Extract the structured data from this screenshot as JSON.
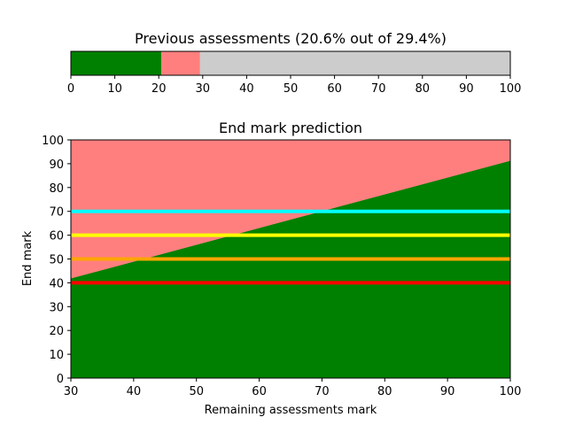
{
  "chart_data": [
    {
      "type": "bar",
      "orientation": "horizontal-stacked",
      "title": "Previous assessments (20.6% out of 29.4%)",
      "xlim": [
        0,
        100
      ],
      "x_ticks": [
        0,
        10,
        20,
        30,
        40,
        50,
        60,
        70,
        80,
        90,
        100
      ],
      "segments": [
        {
          "from": 0,
          "to": 20.6,
          "color": "#008000"
        },
        {
          "from": 20.6,
          "to": 29.4,
          "color": "#ff7f7f"
        },
        {
          "from": 29.4,
          "to": 100,
          "color": "#cccccc"
        }
      ]
    },
    {
      "type": "area",
      "title": "End mark prediction",
      "xlabel": "Remaining assessments mark",
      "ylabel": "End mark",
      "xlim": [
        30,
        100
      ],
      "ylim": [
        0,
        100
      ],
      "x_ticks": [
        30,
        40,
        50,
        60,
        70,
        80,
        90,
        100
      ],
      "y_ticks": [
        0,
        10,
        20,
        30,
        40,
        50,
        60,
        70,
        80,
        90,
        100
      ],
      "background_color": "#ff7f7f",
      "prediction_area": {
        "color": "#008000",
        "x": [
          30,
          100
        ],
        "y": [
          41.8,
          91.2
        ]
      },
      "threshold_lines": [
        {
          "y": 40,
          "color": "#ff0000"
        },
        {
          "y": 50,
          "color": "#ffa500"
        },
        {
          "y": 60,
          "color": "#ffff00"
        },
        {
          "y": 70,
          "color": "#00ffff"
        }
      ]
    }
  ]
}
